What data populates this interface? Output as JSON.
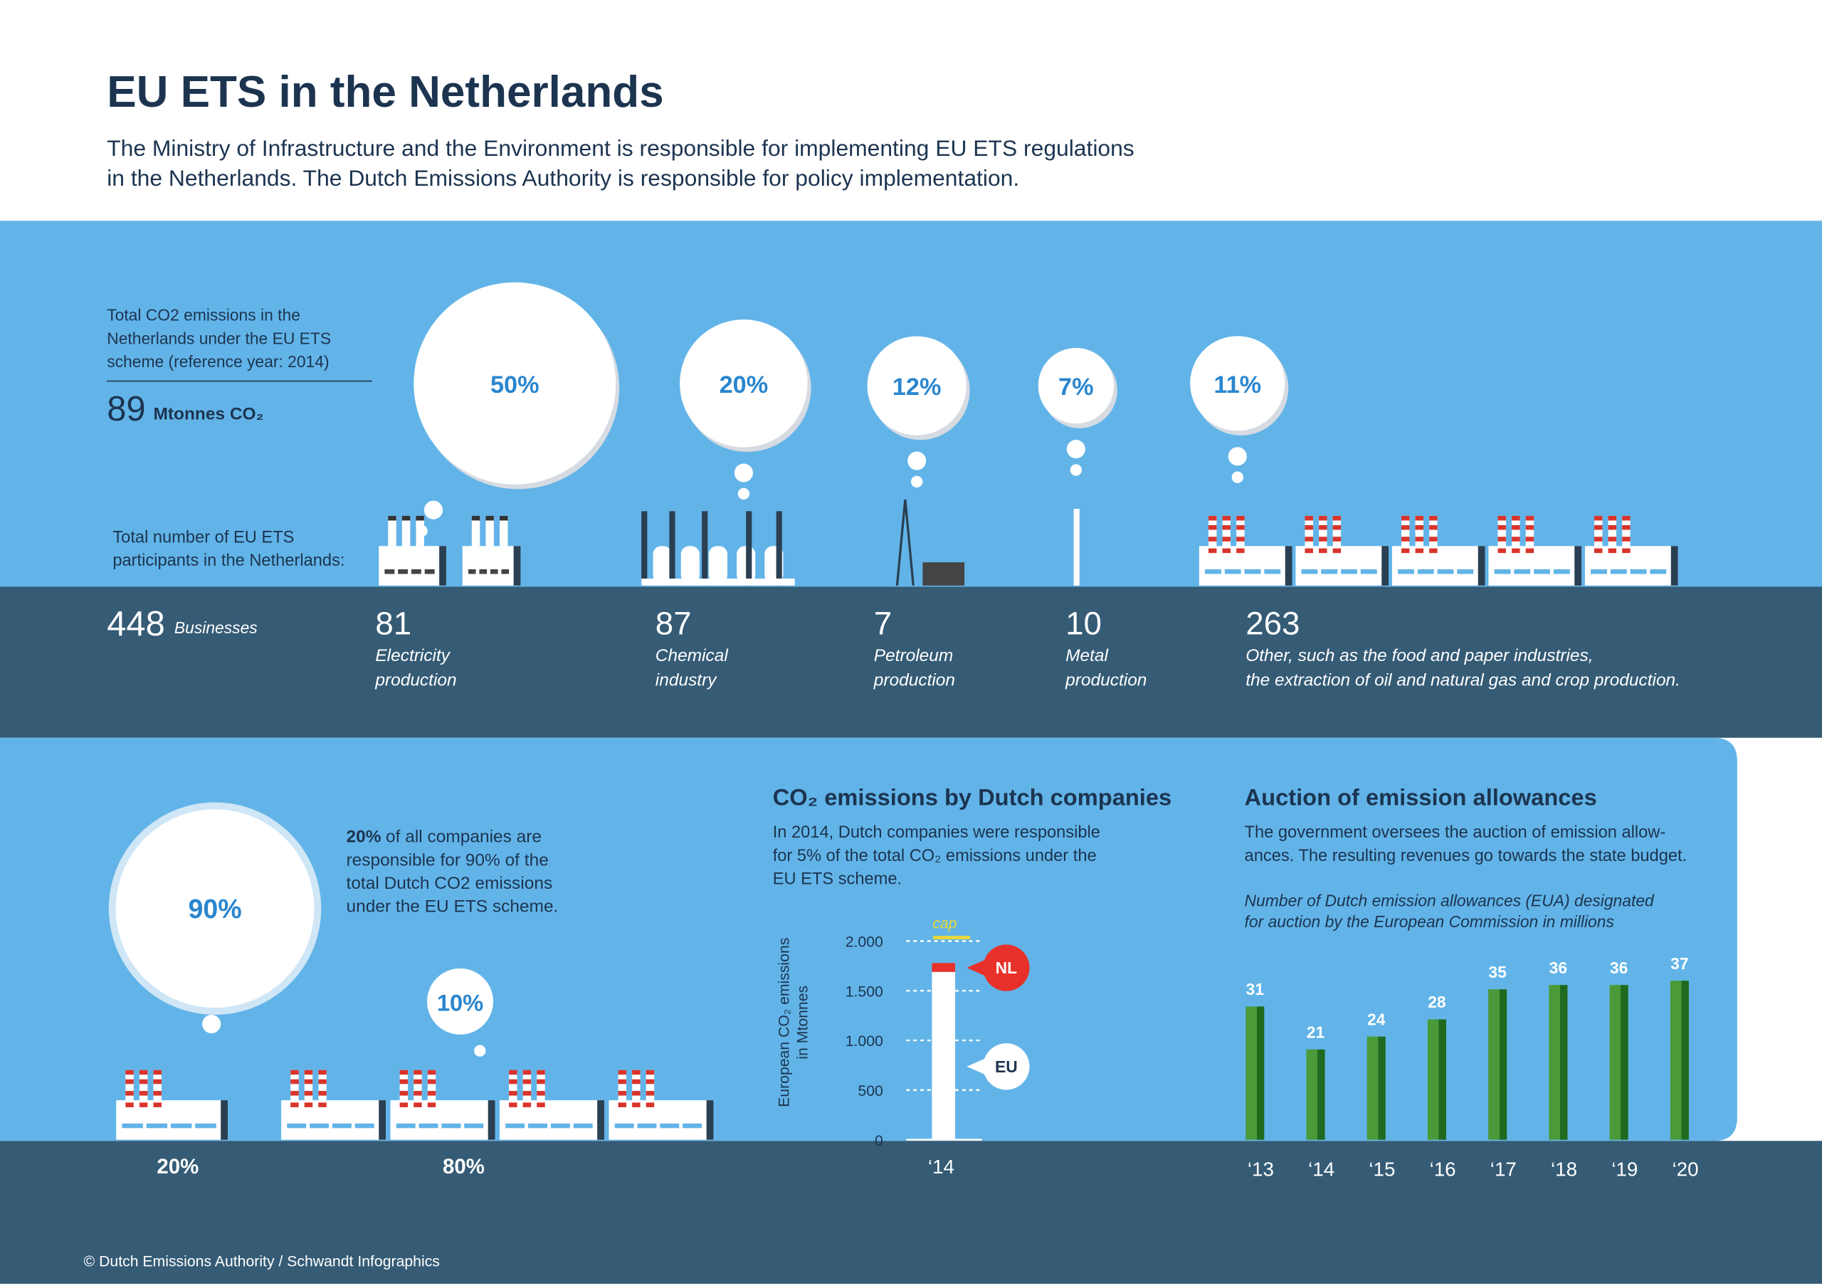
{
  "header": {
    "title": "EU ETS in the Netherlands",
    "subtitle": [
      "The Ministry of Infrastructure and the Environment is responsible for implementing EU ETS regulations",
      "in the Netherlands. The Dutch Emissions Authority is responsible for policy implementation."
    ]
  },
  "emissions": {
    "label": [
      "Total CO2 emissions in the",
      "Netherlands under the EU ETS",
      "scheme (reference year: 2014)"
    ],
    "value": 89,
    "unit": "Mtonnes CO₂"
  },
  "participants": {
    "label": [
      "Total number of EU ETS",
      "participants in the Netherlands:"
    ],
    "total": 448,
    "unit": "Businesses",
    "counts": [
      81,
      87,
      7,
      10,
      263
    ],
    "names": [
      [
        "Electricity",
        "production"
      ],
      [
        "Chemical",
        "industry"
      ],
      [
        "Petroleum",
        "production"
      ],
      [
        "Metal",
        "production"
      ],
      [
        "Other, such as the food and paper industries,",
        "the extraction of oil and natural gas and crop production."
      ]
    ]
  },
  "statement": {
    "lead": "20%",
    "lines": [
      "of all companies are",
      "responsible for 90% of the",
      "total Dutch CO2 emissions",
      "under the EU ETS scheme."
    ]
  },
  "chart_data": [
    {
      "type": "bubble",
      "values": [
        50,
        20,
        12,
        7,
        11
      ],
      "value_labels": [
        "50%",
        "20%",
        "12%",
        "7%",
        "11%"
      ]
    },
    {
      "type": "bubble",
      "categories": [
        "20%",
        "80%"
      ],
      "values": [
        90,
        10
      ],
      "value_labels": [
        "90%",
        "10%"
      ]
    },
    {
      "type": "stacked_bar",
      "title": "CO₂ emissions by Dutch companies",
      "description": [
        "In 2014, Dutch companies were responsible",
        "for 5% of the total CO₂ emissions under the",
        "EU ETS scheme."
      ],
      "ylabel": [
        "European CO₂ emissions",
        "in Mtonnes"
      ],
      "categories": [
        "‘14"
      ],
      "series": [
        {
          "name": "EU",
          "color": "#ffffff",
          "values": [
            1690
          ]
        },
        {
          "name": "NL",
          "color": "#e8312a",
          "values": [
            89
          ]
        }
      ],
      "ylim": [
        0,
        2000
      ],
      "yticks": [
        0,
        500,
        {
          "value": 1000,
          "label": "1.000"
        },
        {
          "value": 1500,
          "label": "1.500"
        },
        {
          "value": 2000,
          "label": "2.000"
        }
      ],
      "grid": true,
      "annotation": "cap"
    },
    {
      "type": "bar",
      "title": "Auction of emission allowances",
      "description": [
        "The government oversees the auction of emission allow-",
        "ances. The resulting revenues go towards the state budget."
      ],
      "subtitle": [
        "Number of Dutch emission allowances (EUA) designated",
        "for auction by the European Commission in millions"
      ],
      "categories": [
        "‘13",
        "‘14",
        "‘15",
        "‘16",
        "‘17",
        "‘18",
        "‘19",
        "‘20"
      ],
      "values": [
        31,
        21,
        24,
        28,
        35,
        36,
        36,
        37
      ],
      "color": "#4a9a3a"
    }
  ],
  "footer": "© Dutch Emissions Authority / Schwandt Infographics"
}
